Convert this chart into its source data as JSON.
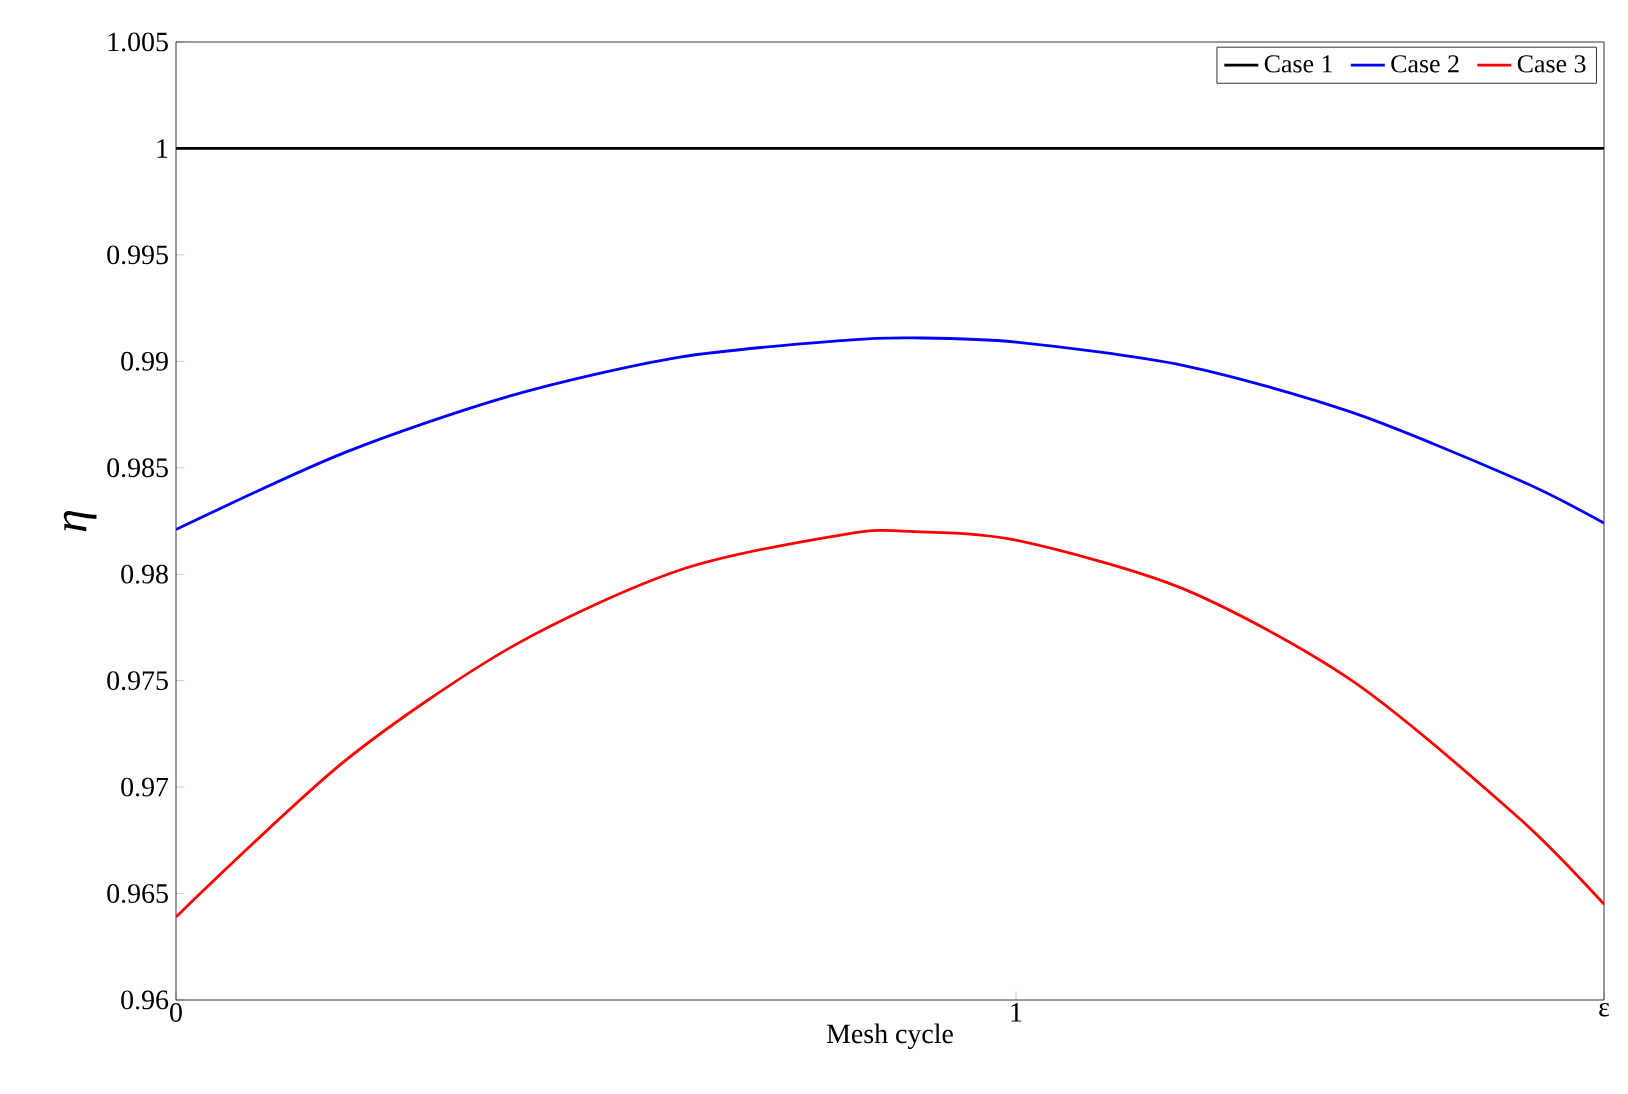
{
  "chart_data": {
    "type": "line",
    "xlabel": "Mesh cycle",
    "ylabel": "η",
    "xlim": [
      0,
      1.7
    ],
    "xticks": [
      0,
      1,
      {
        "value": 1.7,
        "label": "ε"
      }
    ],
    "ylim": [
      0.96,
      1.005
    ],
    "yticks": [
      0.96,
      0.965,
      0.97,
      0.975,
      0.98,
      0.985,
      0.99,
      0.995,
      1,
      1.005
    ],
    "legend": "top right",
    "grid": false,
    "marker": "none",
    "line_style": "solid",
    "x": [
      0,
      0.2,
      0.4,
      0.6,
      0.8,
      0.88,
      1.0,
      1.2,
      1.4,
      1.6,
      1.7
    ],
    "series": [
      {
        "name": "Case 1",
        "color": "#000000",
        "values": [
          1,
          1,
          1,
          1,
          1,
          1,
          1,
          1,
          1,
          1,
          1
        ]
      },
      {
        "name": "Case 2",
        "color": "#0000ff",
        "values": [
          0.9821,
          0.9857,
          0.9884,
          0.9902,
          0.991,
          0.9911,
          0.9909,
          0.9898,
          0.9876,
          0.9844,
          0.9824
        ]
      },
      {
        "name": "Case 3",
        "color": "#ff0000",
        "values": [
          0.9639,
          0.9712,
          0.9766,
          0.9802,
          0.9819,
          0.982,
          0.9816,
          0.9793,
          0.975,
          0.9685,
          0.9645
        ]
      }
    ]
  }
}
